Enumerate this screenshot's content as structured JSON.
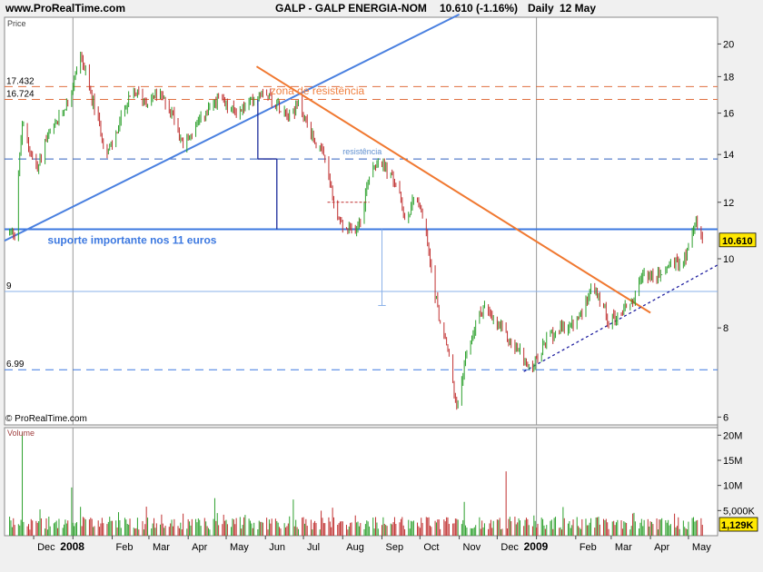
{
  "header": {
    "site": "www.ProRealTime.com",
    "symbol": "GALP - GALP ENERGIA-NOM",
    "quote": "10.610 (-1.16%)",
    "period": "Daily",
    "date": "12 May"
  },
  "chart_data": [
    {
      "type": "candlestick",
      "panel_label": "Price",
      "watermark": "© ProRealTime.com",
      "y_scale": "log",
      "ylim": [
        5.85,
        21.8
      ],
      "yticks": [
        "6",
        "8",
        "10",
        "12",
        "14",
        "16",
        "18",
        "20"
      ],
      "last_price_label": "10.610",
      "xlim": [
        "2007-11-08",
        "2009-05-24"
      ],
      "xticks": [
        {
          "date": "2007-12-01",
          "label": "Dec",
          "bold": false
        },
        {
          "date": "2008-01-01",
          "label": "2008",
          "bold": true
        },
        {
          "date": "2008-02-01",
          "label": "Feb",
          "bold": false
        },
        {
          "date": "2008-03-01",
          "label": "Mar",
          "bold": false
        },
        {
          "date": "2008-04-01",
          "label": "Apr",
          "bold": false
        },
        {
          "date": "2008-05-01",
          "label": "May",
          "bold": false
        },
        {
          "date": "2008-06-01",
          "label": "Jun",
          "bold": false
        },
        {
          "date": "2008-07-01",
          "label": "Jul",
          "bold": false
        },
        {
          "date": "2008-08-01",
          "label": "Aug",
          "bold": false
        },
        {
          "date": "2008-09-01",
          "label": "Sep",
          "bold": false
        },
        {
          "date": "2008-10-01",
          "label": "Oct",
          "bold": false
        },
        {
          "date": "2008-11-01",
          "label": "Nov",
          "bold": false
        },
        {
          "date": "2008-12-01",
          "label": "Dec",
          "bold": false
        },
        {
          "date": "2009-01-01",
          "label": "2009",
          "bold": true
        },
        {
          "date": "2009-02-01",
          "label": "Feb",
          "bold": false
        },
        {
          "date": "2009-03-01",
          "label": "Mar",
          "bold": false
        },
        {
          "date": "2009-04-01",
          "label": "Apr",
          "bold": false
        },
        {
          "date": "2009-05-01",
          "label": "May",
          "bold": false
        }
      ],
      "price_path": [
        [
          "2007-11-10",
          10.9
        ],
        [
          "2007-11-16",
          10.9
        ],
        [
          "2007-11-22",
          15.4
        ],
        [
          "2007-11-28",
          14.2
        ],
        [
          "2007-12-04",
          13.3
        ],
        [
          "2007-12-10",
          14.6
        ],
        [
          "2007-12-18",
          15.3
        ],
        [
          "2007-12-26",
          16.4
        ],
        [
          "2007-12-31",
          17.2
        ],
        [
          "2008-01-07",
          19.4
        ],
        [
          "2008-01-14",
          17.2
        ],
        [
          "2008-01-21",
          15.6
        ],
        [
          "2008-01-28",
          14.0
        ],
        [
          "2008-02-04",
          14.9
        ],
        [
          "2008-02-12",
          16.5
        ],
        [
          "2008-02-20",
          17.1
        ],
        [
          "2008-02-28",
          16.6
        ],
        [
          "2008-03-07",
          17.0
        ],
        [
          "2008-03-14",
          16.6
        ],
        [
          "2008-03-21",
          15.8
        ],
        [
          "2008-03-28",
          14.4
        ],
        [
          "2008-04-04",
          15.0
        ],
        [
          "2008-04-11",
          15.6
        ],
        [
          "2008-04-18",
          16.2
        ],
        [
          "2008-04-25",
          16.7
        ],
        [
          "2008-05-02",
          16.3
        ],
        [
          "2008-05-10",
          16.0
        ],
        [
          "2008-05-17",
          16.4
        ],
        [
          "2008-05-24",
          16.8
        ],
        [
          "2008-05-31",
          17.4
        ],
        [
          "2008-06-07",
          16.6
        ],
        [
          "2008-06-14",
          16.3
        ],
        [
          "2008-06-21",
          16.0
        ],
        [
          "2008-06-28",
          16.5
        ],
        [
          "2008-07-05",
          15.2
        ],
        [
          "2008-07-12",
          14.4
        ],
        [
          "2008-07-19",
          13.6
        ],
        [
          "2008-07-26",
          11.6
        ],
        [
          "2008-08-02",
          11.0
        ],
        [
          "2008-08-09",
          10.9
        ],
        [
          "2008-08-16",
          11.5
        ],
        [
          "2008-08-23",
          13.4
        ],
        [
          "2008-08-30",
          13.8
        ],
        [
          "2008-09-06",
          13.2
        ],
        [
          "2008-09-13",
          12.6
        ],
        [
          "2008-09-20",
          11.2
        ],
        [
          "2008-09-27",
          12.4
        ],
        [
          "2008-10-04",
          11.3
        ],
        [
          "2008-10-10",
          9.6
        ],
        [
          "2008-10-17",
          8.1
        ],
        [
          "2008-10-24",
          7.3
        ],
        [
          "2008-10-30",
          6.1
        ],
        [
          "2008-11-06",
          7.2
        ],
        [
          "2008-11-13",
          8.0
        ],
        [
          "2008-11-20",
          8.6
        ],
        [
          "2008-11-27",
          8.2
        ],
        [
          "2008-12-04",
          8.0
        ],
        [
          "2008-12-12",
          7.6
        ],
        [
          "2008-12-19",
          7.4
        ],
        [
          "2008-12-26",
          7.0
        ],
        [
          "2009-01-02",
          7.2
        ],
        [
          "2009-01-09",
          7.7
        ],
        [
          "2009-01-16",
          7.9
        ],
        [
          "2009-01-23",
          8.0
        ],
        [
          "2009-01-30",
          8.1
        ],
        [
          "2009-02-06",
          8.4
        ],
        [
          "2009-02-13",
          9.2
        ],
        [
          "2009-02-20",
          8.7
        ],
        [
          "2009-02-27",
          8.2
        ],
        [
          "2009-03-06",
          8.3
        ],
        [
          "2009-03-13",
          8.6
        ],
        [
          "2009-03-20",
          8.8
        ],
        [
          "2009-03-27",
          9.6
        ],
        [
          "2009-04-03",
          9.4
        ],
        [
          "2009-04-10",
          9.5
        ],
        [
          "2009-04-17",
          9.9
        ],
        [
          "2009-04-24",
          9.8
        ],
        [
          "2009-04-30",
          10.2
        ],
        [
          "2009-05-06",
          11.3
        ],
        [
          "2009-05-12",
          10.61
        ]
      ],
      "horizontal_levels": [
        {
          "value": 17.432,
          "label": "17.432",
          "color": "#e07040",
          "style": "dashed"
        },
        {
          "value": 16.724,
          "label": "16.724",
          "color": "#e07040",
          "style": "dashed"
        },
        {
          "value": 13.8,
          "label": "",
          "color": "#3060c0",
          "style": "dashed"
        },
        {
          "value": 11.0,
          "label": "",
          "color": "#3c78e0",
          "style": "solid"
        },
        {
          "value": 9.0,
          "label": "9",
          "color": "#8ab0e8",
          "style": "solid"
        },
        {
          "value": 6.99,
          "label": "6.99",
          "color": "#3c78e0",
          "style": "dashed"
        }
      ],
      "trend_lines": [
        {
          "from": [
            "2007-11-08",
            10.6
          ],
          "to": [
            "2008-11-01",
            22.0
          ],
          "color": "#4a80e0",
          "style": "solid"
        },
        {
          "from": [
            "2008-05-25",
            18.6
          ],
          "to": [
            "2009-04-01",
            8.4
          ],
          "color": "#f07830",
          "style": "solid"
        },
        {
          "from": [
            "2008-12-22",
            6.95
          ],
          "to": [
            "2009-05-24",
            9.8
          ],
          "color": "#2020a0",
          "style": "dotted"
        }
      ],
      "annotations": [
        {
          "text": "zona de resistência",
          "date": "2008-06-05",
          "value": 17.0,
          "color": "#f08040",
          "size": 12
        },
        {
          "text": "resistência",
          "date": "2008-08-01",
          "value": 14.0,
          "color": "#6090d0",
          "size": 9
        },
        {
          "text": "suporte importante nos 11 euros",
          "date": "2007-12-12",
          "value": 10.5,
          "color": "#3c78e0",
          "size": 12,
          "bold": true
        }
      ]
    },
    {
      "type": "bar",
      "panel_label": "Volume",
      "ytick_labels": [
        "20M",
        "15M",
        "10M",
        "5,000K"
      ],
      "ytick_values": [
        20000000,
        15000000,
        10000000,
        5000000
      ],
      "ylim": [
        0,
        21500000
      ],
      "last_volume_label": "1,129K"
    }
  ]
}
